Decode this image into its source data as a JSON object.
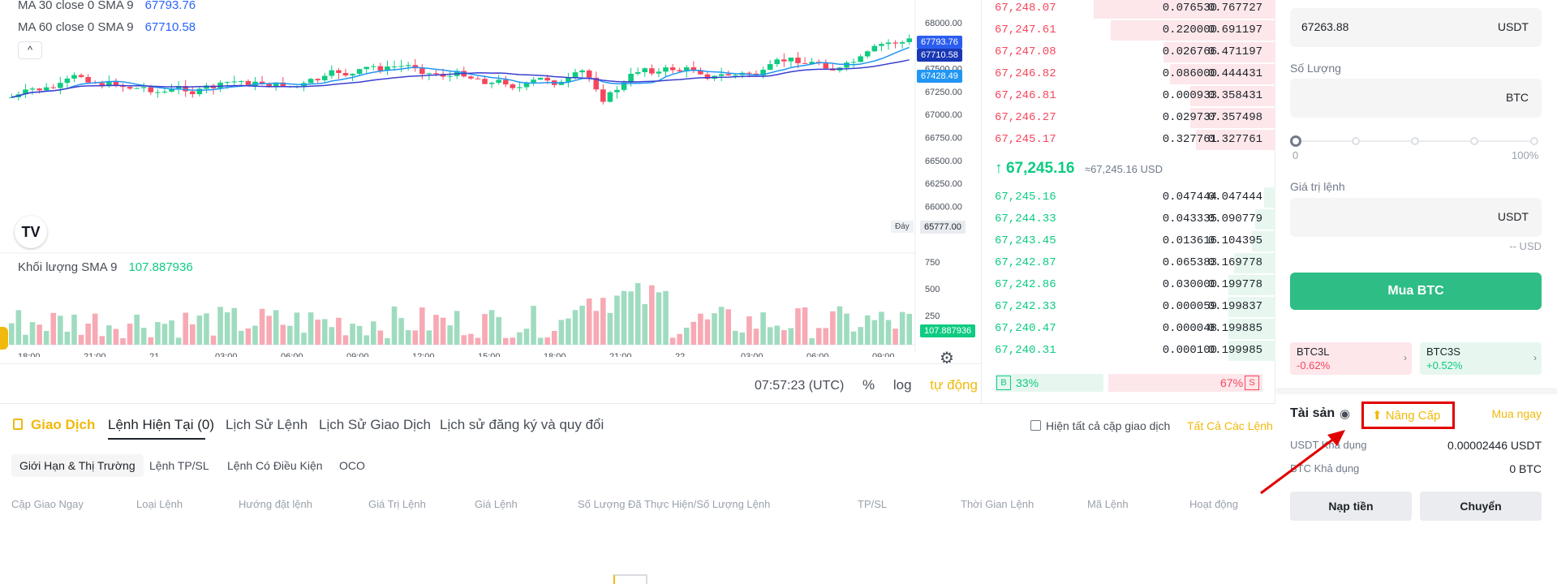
{
  "chart": {
    "ma30_label": "MA 30 close 0 SMA 9",
    "ma30_value": "67793.76",
    "ma60_label": "MA 60 close 0 SMA 9",
    "ma60_value": "67710.58",
    "collapse_icon": "^",
    "price_ticks": [
      "68000.00",
      "67750.00",
      "67500.00",
      "67250.00",
      "67000.00",
      "66750.00",
      "66500.00",
      "66250.00",
      "66000.00"
    ],
    "price_tags": [
      {
        "text": "67793.76",
        "color": "#2b5df0"
      },
      {
        "text": "67710.58",
        "color": "#1838b5"
      },
      {
        "text": "67428.49",
        "color": "#2196f3"
      }
    ],
    "low_label": "Đáy",
    "low_value": "65777.00",
    "volume_label": "Khối lượng SMA 9",
    "volume_value": "107.887936",
    "volume_ticks": [
      "750",
      "500",
      "250"
    ],
    "volume_tag": "107.887936",
    "time_ticks": [
      "18:00",
      "21:00",
      "21",
      "03:00",
      "06:00",
      "09:00",
      "12:00",
      "15:00",
      "18:00",
      "21:00",
      "22",
      "03:00",
      "06:00",
      "09:00"
    ],
    "clock": "07:57:23 (UTC)",
    "tool_percent": "%",
    "tool_log": "log",
    "tool_auto": "tự động",
    "settings_icon": "gear-icon",
    "logo_icon": "tradingview-logo"
  },
  "orderbook": {
    "asks": [
      {
        "price": "67,248.07",
        "amount": "0.076530",
        "total": "0.767727",
        "depth": 0.62
      },
      {
        "price": "67,247.61",
        "amount": "0.220000",
        "total": "0.691197",
        "depth": 0.56
      },
      {
        "price": "67,247.08",
        "amount": "0.026766",
        "total": "0.471197",
        "depth": 0.38
      },
      {
        "price": "67,246.82",
        "amount": "0.086000",
        "total": "0.444431",
        "depth": 0.36
      },
      {
        "price": "67,246.81",
        "amount": "0.000933",
        "total": "0.358431",
        "depth": 0.29
      },
      {
        "price": "67,246.27",
        "amount": "0.029737",
        "total": "0.357498",
        "depth": 0.29
      },
      {
        "price": "67,245.17",
        "amount": "0.327761",
        "total": "0.327761",
        "depth": 0.27
      }
    ],
    "mid_price": "67,245.16",
    "mid_sub": "≈67,245.16 USD",
    "bids": [
      {
        "price": "67,245.16",
        "amount": "0.047444",
        "total": "0.047444",
        "depth": 0.04
      },
      {
        "price": "67,244.33",
        "amount": "0.043335",
        "total": "0.090779",
        "depth": 0.07
      },
      {
        "price": "67,243.45",
        "amount": "0.013616",
        "total": "0.104395",
        "depth": 0.08
      },
      {
        "price": "67,242.87",
        "amount": "0.065383",
        "total": "0.169778",
        "depth": 0.14
      },
      {
        "price": "67,242.86",
        "amount": "0.030000",
        "total": "0.199778",
        "depth": 0.16
      },
      {
        "price": "67,242.33",
        "amount": "0.000059",
        "total": "0.199837",
        "depth": 0.16
      },
      {
        "price": "67,240.47",
        "amount": "0.000048",
        "total": "0.199885",
        "depth": 0.16
      },
      {
        "price": "67,240.31",
        "amount": "0.000100",
        "total": "0.199985",
        "depth": 0.16
      }
    ],
    "buy_badge": "B",
    "buy_pct": "33%",
    "sell_pct": "67%",
    "sell_badge": "S"
  },
  "trade": {
    "price_value": "67263.88",
    "price_unit": "USDT",
    "qty_label": "Số Lượng",
    "qty_unit": "BTC",
    "slider_min": "0",
    "slider_max": "100%",
    "order_value_label": "Giá trị lệnh",
    "order_value_unit": "USDT",
    "order_value_sub": "-- USD",
    "buy_button": "Mua BTC",
    "lev_long_name": "BTC3L",
    "lev_long_change": "-0.62%",
    "lev_short_name": "BTC3S",
    "lev_short_change": "+0.52%",
    "assets_title": "Tài sản",
    "upgrade": "Nâng Cấp",
    "buy_now": "Mua ngay",
    "usdt_available_label": "USDT Khả dụng",
    "usdt_available_value": "0.00002446 USDT",
    "btc_available_label": "BTC Khả dụng",
    "btc_available_value": "0 BTC",
    "deposit_button": "Nạp tiền",
    "transfer_button": "Chuyển"
  },
  "orders": {
    "tabs": [
      "Giao Dịch",
      "Lệnh Hiện Tại (0)",
      "Lịch Sử Lệnh",
      "Lịch Sử Giao Dịch",
      "Lịch sử đăng ký và quy đổi"
    ],
    "show_all_pairs": "Hiện tất cả cặp giao dịch",
    "all_orders": "Tất Cả Các Lệnh",
    "sub_tabs": [
      "Giới Hạn & Thị Trường",
      "Lệnh TP/SL",
      "Lệnh Có Điều Kiện",
      "OCO"
    ],
    "columns": [
      "Cặp Giao Ngay",
      "Loại Lệnh",
      "Hướng đặt lệnh",
      "Giá Trị Lệnh",
      "Giá Lệnh",
      "Số Lượng Đã Thực Hiện/Số Lượng Lệnh",
      "TP/SL",
      "Thời Gian Lệnh",
      "Mã Lệnh",
      "Hoạt động"
    ]
  },
  "colors": {
    "up": "#0ecb81",
    "down": "#f6465d",
    "accent": "#f0b90b",
    "highlight_box": "#e00000"
  }
}
